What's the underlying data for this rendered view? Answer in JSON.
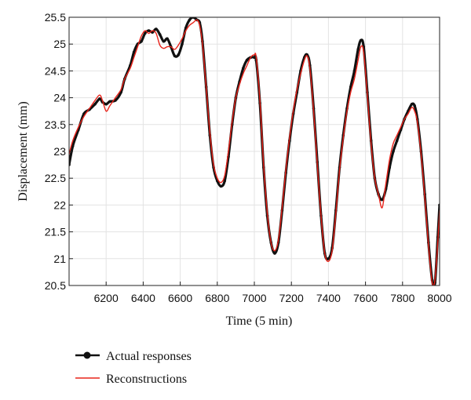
{
  "chart_data": {
    "type": "line",
    "xlabel": "Time (5 min)",
    "ylabel": "Displacement (mm)",
    "xlim": [
      6000,
      8000
    ],
    "ylim": [
      20.5,
      25.5
    ],
    "xticks": [
      6200,
      6400,
      6600,
      6800,
      7000,
      7200,
      7400,
      7600,
      7800,
      8000
    ],
    "yticks": [
      20.5,
      21,
      21.5,
      22,
      22.5,
      23,
      23.5,
      24,
      24.5,
      25,
      25.5
    ],
    "grid": true,
    "legend_position": "below",
    "series": [
      {
        "name": "Actual responses",
        "color": "#111111",
        "marker": "circle",
        "points": [
          [
            6000,
            22.75
          ],
          [
            6020,
            23.1
          ],
          [
            6050,
            23.4
          ],
          [
            6080,
            23.7
          ],
          [
            6110,
            23.78
          ],
          [
            6140,
            23.88
          ],
          [
            6165,
            23.98
          ],
          [
            6180,
            23.92
          ],
          [
            6200,
            23.88
          ],
          [
            6220,
            23.93
          ],
          [
            6250,
            23.95
          ],
          [
            6280,
            24.1
          ],
          [
            6300,
            24.35
          ],
          [
            6330,
            24.6
          ],
          [
            6350,
            24.85
          ],
          [
            6370,
            25.0
          ],
          [
            6390,
            25.05
          ],
          [
            6410,
            25.2
          ],
          [
            6430,
            25.25
          ],
          [
            6450,
            25.22
          ],
          [
            6470,
            25.28
          ],
          [
            6490,
            25.18
          ],
          [
            6510,
            25.05
          ],
          [
            6530,
            25.1
          ],
          [
            6550,
            24.95
          ],
          [
            6570,
            24.78
          ],
          [
            6590,
            24.8
          ],
          [
            6610,
            25.0
          ],
          [
            6630,
            25.3
          ],
          [
            6650,
            25.45
          ],
          [
            6670,
            25.5
          ],
          [
            6690,
            25.45
          ],
          [
            6705,
            25.4
          ],
          [
            6720,
            25.05
          ],
          [
            6740,
            24.2
          ],
          [
            6760,
            23.3
          ],
          [
            6780,
            22.7
          ],
          [
            6800,
            22.45
          ],
          [
            6820,
            22.35
          ],
          [
            6840,
            22.45
          ],
          [
            6860,
            22.9
          ],
          [
            6880,
            23.5
          ],
          [
            6900,
            24.0
          ],
          [
            6920,
            24.3
          ],
          [
            6940,
            24.55
          ],
          [
            6960,
            24.7
          ],
          [
            6980,
            24.75
          ],
          [
            7000,
            24.75
          ],
          [
            7010,
            24.7
          ],
          [
            7030,
            23.9
          ],
          [
            7050,
            22.7
          ],
          [
            7070,
            21.8
          ],
          [
            7090,
            21.3
          ],
          [
            7110,
            21.1
          ],
          [
            7130,
            21.3
          ],
          [
            7150,
            21.9
          ],
          [
            7170,
            22.6
          ],
          [
            7190,
            23.2
          ],
          [
            7210,
            23.7
          ],
          [
            7230,
            24.1
          ],
          [
            7250,
            24.5
          ],
          [
            7270,
            24.75
          ],
          [
            7285,
            24.8
          ],
          [
            7300,
            24.6
          ],
          [
            7320,
            23.8
          ],
          [
            7340,
            22.8
          ],
          [
            7360,
            21.8
          ],
          [
            7380,
            21.1
          ],
          [
            7400,
            21.0
          ],
          [
            7420,
            21.2
          ],
          [
            7440,
            21.9
          ],
          [
            7460,
            22.7
          ],
          [
            7480,
            23.3
          ],
          [
            7500,
            23.8
          ],
          [
            7520,
            24.2
          ],
          [
            7540,
            24.5
          ],
          [
            7560,
            24.9
          ],
          [
            7575,
            25.07
          ],
          [
            7590,
            24.95
          ],
          [
            7610,
            24.1
          ],
          [
            7630,
            23.2
          ],
          [
            7650,
            22.5
          ],
          [
            7670,
            22.2
          ],
          [
            7690,
            22.1
          ],
          [
            7710,
            22.3
          ],
          [
            7730,
            22.7
          ],
          [
            7750,
            23.0
          ],
          [
            7770,
            23.2
          ],
          [
            7790,
            23.4
          ],
          [
            7810,
            23.6
          ],
          [
            7830,
            23.75
          ],
          [
            7850,
            23.88
          ],
          [
            7865,
            23.85
          ],
          [
            7880,
            23.6
          ],
          [
            7900,
            23.0
          ],
          [
            7920,
            22.2
          ],
          [
            7940,
            21.3
          ],
          [
            7960,
            20.6
          ],
          [
            7975,
            20.55
          ],
          [
            7990,
            21.4
          ],
          [
            8000,
            22.0
          ]
        ]
      },
      {
        "name": "Reconstructions",
        "color": "#e8231a",
        "marker": "none",
        "points": [
          [
            6000,
            22.95
          ],
          [
            6020,
            23.2
          ],
          [
            6050,
            23.45
          ],
          [
            6080,
            23.65
          ],
          [
            6110,
            23.8
          ],
          [
            6140,
            23.95
          ],
          [
            6165,
            24.05
          ],
          [
            6180,
            23.95
          ],
          [
            6200,
            23.75
          ],
          [
            6220,
            23.85
          ],
          [
            6250,
            24.0
          ],
          [
            6280,
            24.15
          ],
          [
            6300,
            24.35
          ],
          [
            6330,
            24.55
          ],
          [
            6350,
            24.75
          ],
          [
            6370,
            24.95
          ],
          [
            6390,
            25.15
          ],
          [
            6410,
            25.25
          ],
          [
            6430,
            25.2
          ],
          [
            6450,
            25.25
          ],
          [
            6470,
            25.2
          ],
          [
            6490,
            24.98
          ],
          [
            6510,
            24.92
          ],
          [
            6530,
            24.95
          ],
          [
            6550,
            24.95
          ],
          [
            6570,
            24.9
          ],
          [
            6590,
            24.98
          ],
          [
            6610,
            25.1
          ],
          [
            6630,
            25.25
          ],
          [
            6650,
            25.35
          ],
          [
            6670,
            25.4
          ],
          [
            6690,
            25.45
          ],
          [
            6705,
            25.35
          ],
          [
            6720,
            25.0
          ],
          [
            6740,
            24.2
          ],
          [
            6760,
            23.35
          ],
          [
            6780,
            22.75
          ],
          [
            6800,
            22.5
          ],
          [
            6820,
            22.42
          ],
          [
            6840,
            22.55
          ],
          [
            6860,
            23.0
          ],
          [
            6880,
            23.55
          ],
          [
            6900,
            24.0
          ],
          [
            6920,
            24.25
          ],
          [
            6940,
            24.45
          ],
          [
            6960,
            24.6
          ],
          [
            6980,
            24.75
          ],
          [
            7000,
            24.8
          ],
          [
            7010,
            24.75
          ],
          [
            7030,
            23.95
          ],
          [
            7050,
            22.75
          ],
          [
            7070,
            21.85
          ],
          [
            7090,
            21.3
          ],
          [
            7110,
            21.15
          ],
          [
            7130,
            21.35
          ],
          [
            7150,
            21.95
          ],
          [
            7170,
            22.65
          ],
          [
            7190,
            23.25
          ],
          [
            7210,
            23.75
          ],
          [
            7230,
            24.15
          ],
          [
            7250,
            24.45
          ],
          [
            7270,
            24.7
          ],
          [
            7285,
            24.78
          ],
          [
            7300,
            24.55
          ],
          [
            7320,
            23.75
          ],
          [
            7340,
            22.75
          ],
          [
            7360,
            21.8
          ],
          [
            7380,
            21.1
          ],
          [
            7400,
            20.95
          ],
          [
            7420,
            21.15
          ],
          [
            7440,
            21.85
          ],
          [
            7460,
            22.65
          ],
          [
            7480,
            23.25
          ],
          [
            7500,
            23.75
          ],
          [
            7520,
            24.1
          ],
          [
            7540,
            24.35
          ],
          [
            7560,
            24.7
          ],
          [
            7575,
            24.95
          ],
          [
            7590,
            24.85
          ],
          [
            7610,
            24.05
          ],
          [
            7630,
            23.15
          ],
          [
            7650,
            22.5
          ],
          [
            7670,
            22.2
          ],
          [
            7690,
            21.95
          ],
          [
            7710,
            22.4
          ],
          [
            7730,
            22.85
          ],
          [
            7750,
            23.15
          ],
          [
            7770,
            23.3
          ],
          [
            7790,
            23.45
          ],
          [
            7810,
            23.6
          ],
          [
            7830,
            23.7
          ],
          [
            7850,
            23.82
          ],
          [
            7865,
            23.75
          ],
          [
            7880,
            23.55
          ],
          [
            7900,
            22.95
          ],
          [
            7920,
            22.15
          ],
          [
            7940,
            21.25
          ],
          [
            7960,
            20.55
          ],
          [
            7975,
            20.6
          ],
          [
            7990,
            21.3
          ],
          [
            8000,
            21.9
          ]
        ]
      }
    ]
  }
}
